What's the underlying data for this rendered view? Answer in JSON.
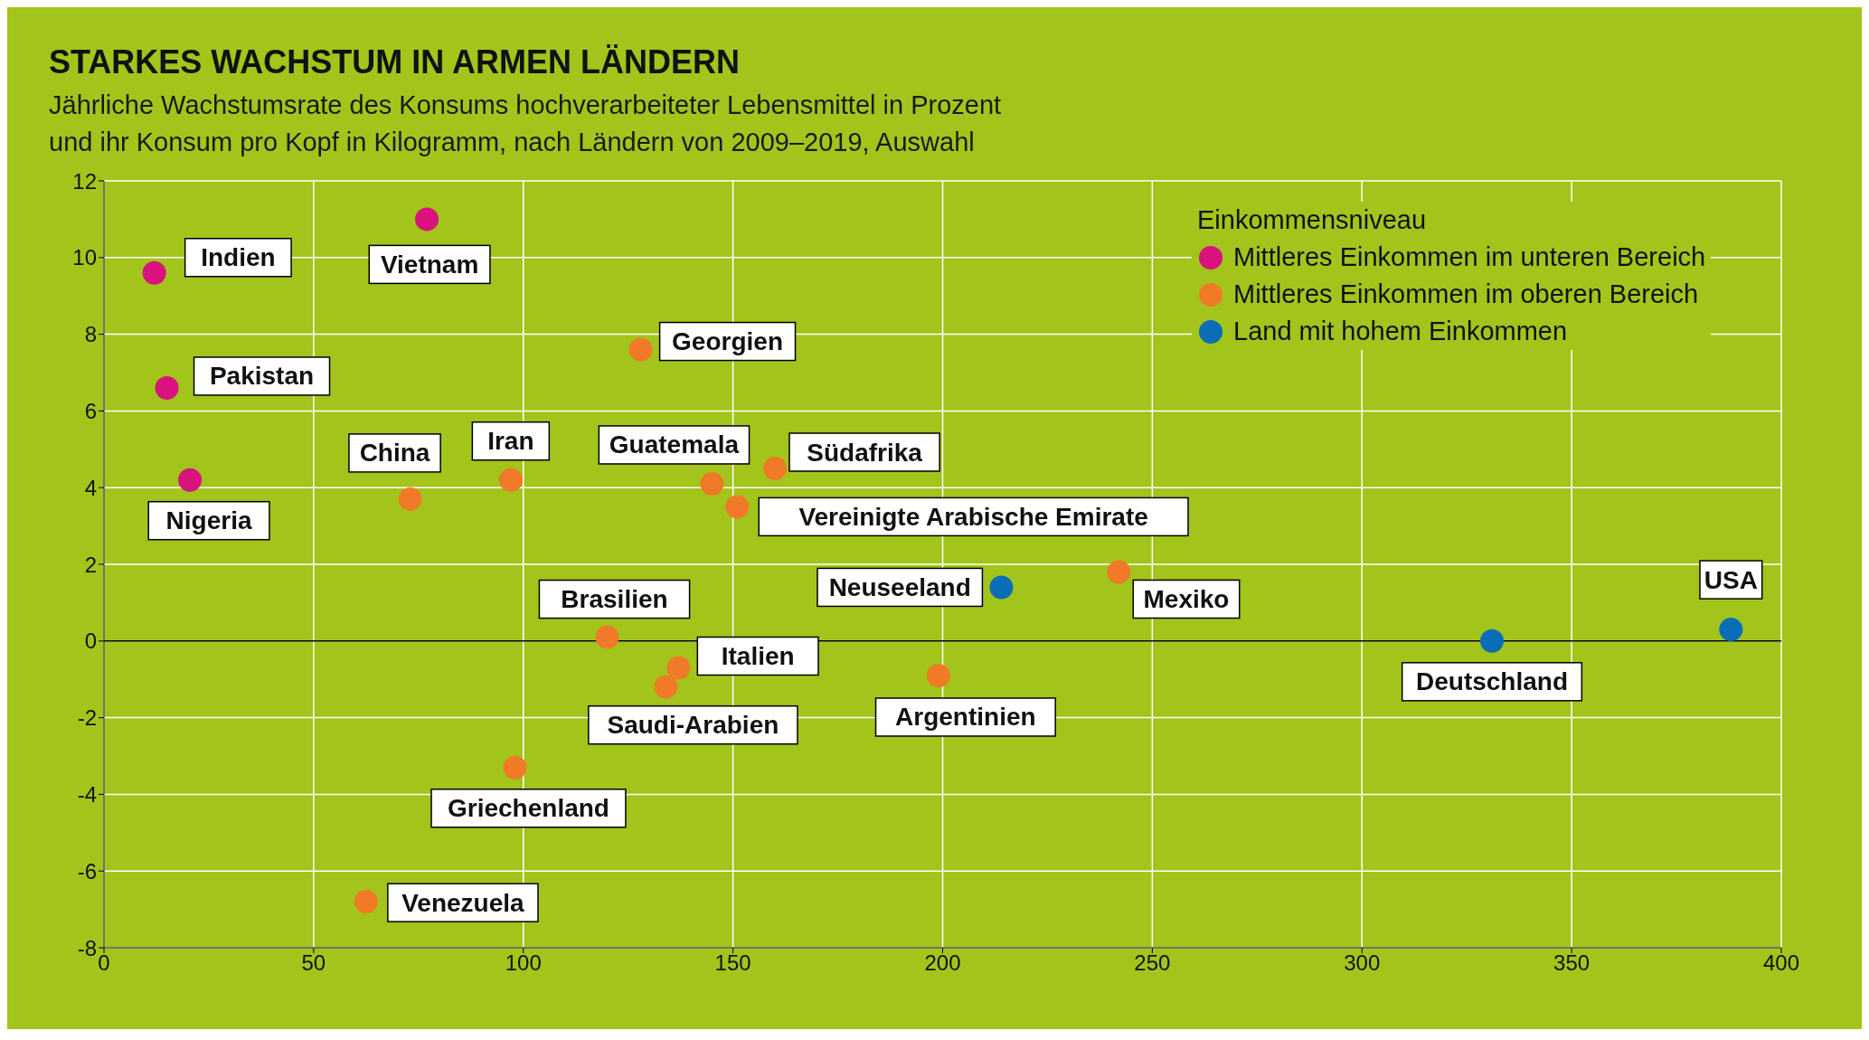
{
  "chart_data": {
    "type": "scatter",
    "title": "STARKES WACHSTUM IN ARMEN LÄNDERN",
    "subtitle": "Jährliche Wachstumsrate des Konsums hochverarbeiteter Lebensmittel in Prozent\nund ihr Konsum pro Kopf in Kilogramm, nach Ländern von 2009–2019, Auswahl",
    "legend_title": "Einkommensniveau",
    "legend": "top right",
    "grid": true,
    "marker": "circle",
    "xlim": [
      0,
      400
    ],
    "xticks": [
      0,
      50,
      100,
      150,
      200,
      250,
      300,
      350,
      400
    ],
    "ylim": [
      -8,
      12
    ],
    "yticks": [
      -8,
      -6,
      -4,
      -2,
      0,
      2,
      4,
      6,
      8,
      10,
      12
    ],
    "ref_lines": [
      {
        "axis": "y",
        "value": 0,
        "color": "#000000"
      }
    ],
    "series": [
      {
        "name": "Mittleres Einkommen im unteren Bereich",
        "color": "#d9127e",
        "x": [
          12,
          77,
          15,
          20.5
        ],
        "values": [
          9.6,
          11,
          6.6,
          4.2
        ]
      },
      {
        "name": "Mittleres Einkommen im oberen Bereich",
        "color": "#f07a28",
        "x": [
          73,
          97,
          128,
          145,
          160,
          151,
          242,
          120,
          137,
          134,
          199,
          98,
          62.5
        ],
        "values": [
          3.7,
          4.2,
          7.6,
          4.1,
          4.5,
          3.5,
          1.8,
          0.1,
          -0.7,
          -1.2,
          -0.9,
          -3.3,
          -6.8
        ]
      },
      {
        "name": "Land mit hohem Einkommen",
        "color": "#0a6db6",
        "x": [
          214,
          388,
          331
        ],
        "values": [
          1.4,
          0.3,
          0
        ]
      }
    ],
    "annotations": [
      {
        "text": "Indien",
        "x": 12,
        "y": 9.6
      },
      {
        "text": "Vietnam",
        "x": 77,
        "y": 11
      },
      {
        "text": "Pakistan",
        "x": 15,
        "y": 6.6
      },
      {
        "text": "Nigeria",
        "x": 20.5,
        "y": 4.2
      },
      {
        "text": "China",
        "x": 73,
        "y": 3.7
      },
      {
        "text": "Iran",
        "x": 97,
        "y": 4.2
      },
      {
        "text": "Georgien",
        "x": 128,
        "y": 7.6
      },
      {
        "text": "Guatemala",
        "x": 145,
        "y": 4.1
      },
      {
        "text": "Südafrika",
        "x": 160,
        "y": 4.5
      },
      {
        "text": "Vereinigte Arabische Emirate",
        "x": 151,
        "y": 3.5
      },
      {
        "text": "Mexiko",
        "x": 242,
        "y": 1.8
      },
      {
        "text": "Neuseeland",
        "x": 214,
        "y": 1.4
      },
      {
        "text": "USA",
        "x": 388,
        "y": 0.3
      },
      {
        "text": "Deutschland",
        "x": 331,
        "y": 0
      },
      {
        "text": "Brasilien",
        "x": 120,
        "y": 0.1
      },
      {
        "text": "Italien",
        "x": 137,
        "y": -0.7
      },
      {
        "text": "Saudi-Arabien",
        "x": 134,
        "y": -1.2
      },
      {
        "text": "Argentinien",
        "x": 199,
        "y": -0.9
      },
      {
        "text": "Griechenland",
        "x": 98,
        "y": -3.3
      },
      {
        "text": "Venezuela",
        "x": 62.5,
        "y": -6.8
      }
    ]
  }
}
